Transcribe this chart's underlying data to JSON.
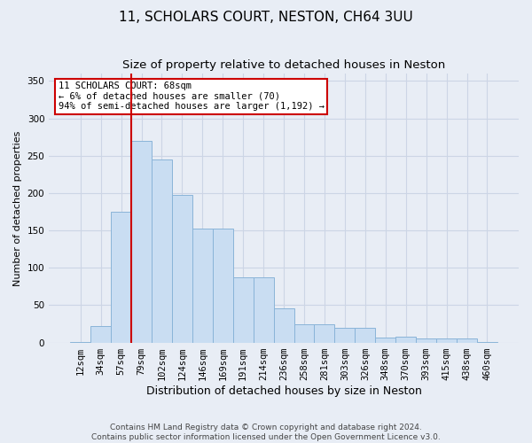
{
  "title1": "11, SCHOLARS COURT, NESTON, CH64 3UU",
  "title2": "Size of property relative to detached houses in Neston",
  "xlabel": "Distribution of detached houses by size in Neston",
  "ylabel": "Number of detached properties",
  "bar_labels": [
    "12sqm",
    "34sqm",
    "57sqm",
    "79sqm",
    "102sqm",
    "124sqm",
    "146sqm",
    "169sqm",
    "191sqm",
    "214sqm",
    "236sqm",
    "258sqm",
    "281sqm",
    "303sqm",
    "326sqm",
    "348sqm",
    "370sqm",
    "393sqm",
    "415sqm",
    "438sqm",
    "460sqm"
  ],
  "bar_values": [
    1,
    22,
    175,
    270,
    245,
    197,
    153,
    153,
    87,
    87,
    46,
    25,
    25,
    20,
    20,
    7,
    8,
    5,
    5,
    6,
    1
  ],
  "bar_color": "#c9ddf2",
  "bar_edge_color": "#8ab4d8",
  "grid_color": "#ccd5e5",
  "background_color": "#e8edf5",
  "vline_x_index": 2,
  "vline_color": "#cc0000",
  "annotation_text": "11 SCHOLARS COURT: 68sqm\n← 6% of detached houses are smaller (70)\n94% of semi-detached houses are larger (1,192) →",
  "annotation_box_color": "#ffffff",
  "annotation_box_edge": "#cc0000",
  "footer1": "Contains HM Land Registry data © Crown copyright and database right 2024.",
  "footer2": "Contains public sector information licensed under the Open Government Licence v3.0.",
  "ylim": [
    0,
    360
  ],
  "yticks": [
    0,
    50,
    100,
    150,
    200,
    250,
    300,
    350
  ],
  "title1_fontsize": 11,
  "title2_fontsize": 9.5,
  "xlabel_fontsize": 9,
  "ylabel_fontsize": 8,
  "tick_fontsize": 7.5,
  "annotation_fontsize": 7.5,
  "footer_fontsize": 6.5
}
